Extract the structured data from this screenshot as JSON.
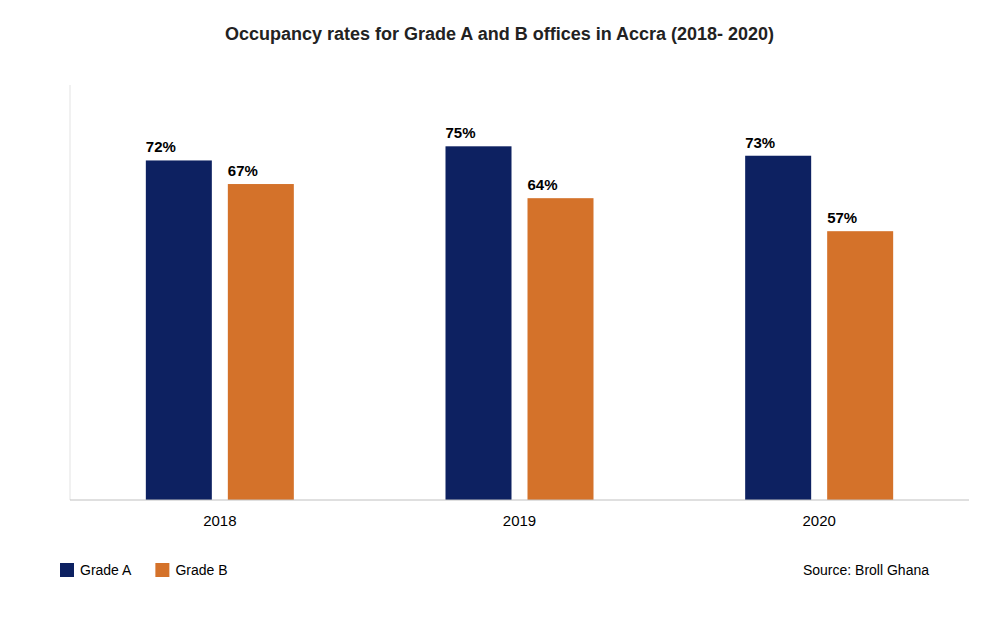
{
  "chart_data": {
    "type": "bar",
    "title": "Occupancy rates for Grade A and B offices in Accra (2018- 2020)",
    "categories": [
      "2018",
      "2019",
      "2020"
    ],
    "series": [
      {
        "name": "Grade A",
        "color": "#0D2161",
        "values": [
          72,
          75,
          73
        ],
        "value_labels": [
          "72%",
          "75%",
          "73%"
        ]
      },
      {
        "name": "Grade B",
        "color": "#D4722A",
        "values": [
          67,
          64,
          57
        ],
        "value_labels": [
          "67%",
          "64%",
          "57%"
        ]
      }
    ],
    "ylim": [
      0,
      88
    ],
    "grid": false,
    "legend": "lower-left",
    "data_labels": true,
    "tick_labels": "x",
    "annotations": [
      "Source: Broll Ghana"
    ]
  }
}
